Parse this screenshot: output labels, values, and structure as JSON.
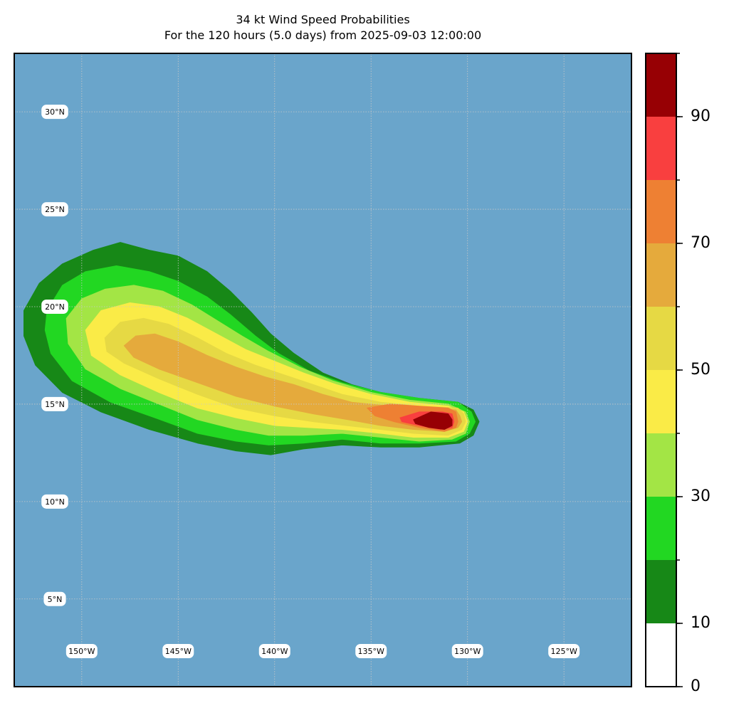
{
  "title": {
    "line1": "34 kt Wind Speed Probabilities",
    "line2": "For the 120 hours (5.0 days) from 2025-09-03 12:00:00"
  },
  "map": {
    "ocean_color": "#6aa5cb",
    "lon_range": [
      -153.5,
      -121.5
    ],
    "lat_range": [
      0.5,
      33
    ],
    "gridlines": {
      "lon": [
        -150,
        -145,
        -140,
        -135,
        -130,
        -125
      ],
      "lat": [
        5,
        10,
        15,
        20,
        25,
        30
      ]
    },
    "lat_labels": [
      "30°N",
      "25°N",
      "20°N",
      "15°N",
      "10°N",
      "5°N"
    ],
    "lon_labels": [
      "150°W",
      "145°W",
      "140°W",
      "135°W",
      "130°W",
      "125°W"
    ]
  },
  "chart_data": {
    "type": "heatmap",
    "title": "34 kt Wind Speed Probabilities\nFor the 120 hours (5.0 days) from 2025-09-03 12:00:00",
    "levels": [
      0,
      10,
      20,
      30,
      40,
      50,
      60,
      70,
      80,
      90,
      100
    ],
    "level_colors": [
      "#ffffff",
      "#178817",
      "#22d722",
      "#a3e545",
      "#faeb47",
      "#e6d944",
      "#e5aa3c",
      "#ee8033",
      "#f93f3f",
      "#970004",
      "#8428d9"
    ],
    "colorbar_ticks": [
      "0",
      "10",
      "30",
      "50",
      "70",
      "90"
    ],
    "colorbar_range": [
      0,
      100
    ],
    "contours": [
      {
        "level": 10,
        "polygon": [
          [
            -153,
            19.8
          ],
          [
            -152.2,
            21.2
          ],
          [
            -151,
            22.2
          ],
          [
            -149.4,
            22.9
          ],
          [
            -148,
            23.3
          ],
          [
            -146.5,
            22.9
          ],
          [
            -145,
            22.6
          ],
          [
            -143.5,
            21.8
          ],
          [
            -142.3,
            20.8
          ],
          [
            -141.2,
            19.7
          ],
          [
            -140.2,
            18.6
          ],
          [
            -139,
            17.6
          ],
          [
            -137.5,
            16.6
          ],
          [
            -136,
            16
          ],
          [
            -134.5,
            15.6
          ],
          [
            -132.5,
            15.3
          ],
          [
            -130.5,
            15.1
          ],
          [
            -129.7,
            14.7
          ],
          [
            -129.4,
            14.1
          ],
          [
            -129.7,
            13.4
          ],
          [
            -130.4,
            13
          ],
          [
            -132.5,
            12.8
          ],
          [
            -134.5,
            12.8
          ],
          [
            -136.5,
            12.9
          ],
          [
            -138.5,
            12.7
          ],
          [
            -140.2,
            12.4
          ],
          [
            -142,
            12.6
          ],
          [
            -144,
            13
          ],
          [
            -146.5,
            13.7
          ],
          [
            -149,
            14.6
          ],
          [
            -151,
            15.6
          ],
          [
            -152.4,
            17
          ],
          [
            -153,
            18.5
          ]
        ]
      },
      {
        "level": 20,
        "polygon": [
          [
            -151.8,
            19.8
          ],
          [
            -151,
            21.1
          ],
          [
            -149.8,
            21.8
          ],
          [
            -148.2,
            22.1
          ],
          [
            -146.5,
            21.8
          ],
          [
            -145,
            21.3
          ],
          [
            -143.5,
            20.5
          ],
          [
            -142.3,
            19.6
          ],
          [
            -141,
            18.5
          ],
          [
            -139.8,
            17.6
          ],
          [
            -138.2,
            16.7
          ],
          [
            -136.5,
            16.1
          ],
          [
            -134.5,
            15.6
          ],
          [
            -132.5,
            15.3
          ],
          [
            -130.5,
            15.1
          ],
          [
            -129.8,
            14.6
          ],
          [
            -129.6,
            14.1
          ],
          [
            -129.9,
            13.5
          ],
          [
            -130.6,
            13.1
          ],
          [
            -132.5,
            13
          ],
          [
            -134.5,
            13
          ],
          [
            -136.5,
            13.2
          ],
          [
            -138.5,
            13
          ],
          [
            -140.3,
            12.9
          ],
          [
            -142,
            13.1
          ],
          [
            -144,
            13.5
          ],
          [
            -146.2,
            14.3
          ],
          [
            -148.5,
            15.1
          ],
          [
            -150.5,
            16.2
          ],
          [
            -151.6,
            17.6
          ],
          [
            -151.9,
            18.8
          ]
        ]
      },
      {
        "level": 30,
        "polygon": [
          [
            -150.8,
            19.4
          ],
          [
            -150,
            20.4
          ],
          [
            -148.8,
            20.9
          ],
          [
            -147.3,
            21.1
          ],
          [
            -145.8,
            20.8
          ],
          [
            -144.3,
            20.1
          ],
          [
            -143,
            19.3
          ],
          [
            -141.7,
            18.5
          ],
          [
            -140.3,
            17.7
          ],
          [
            -138.7,
            16.9
          ],
          [
            -137,
            16.2
          ],
          [
            -135,
            15.6
          ],
          [
            -133,
            15.2
          ],
          [
            -131,
            15
          ],
          [
            -130.1,
            14.6
          ],
          [
            -129.9,
            14.1
          ],
          [
            -130.1,
            13.5
          ],
          [
            -130.8,
            13.2
          ],
          [
            -132.5,
            13.1
          ],
          [
            -134.5,
            13.3
          ],
          [
            -136.5,
            13.5
          ],
          [
            -138.5,
            13.4
          ],
          [
            -140.3,
            13.4
          ],
          [
            -142,
            13.7
          ],
          [
            -144,
            14.2
          ],
          [
            -146,
            15
          ],
          [
            -148,
            15.8
          ],
          [
            -149.8,
            16.8
          ],
          [
            -150.7,
            18.1
          ]
        ]
      },
      {
        "level": 40,
        "polygon": [
          [
            -149.8,
            18.8
          ],
          [
            -149,
            19.8
          ],
          [
            -147.5,
            20.2
          ],
          [
            -146,
            20
          ],
          [
            -144.5,
            19.4
          ],
          [
            -143,
            18.6
          ],
          [
            -141.5,
            17.8
          ],
          [
            -140,
            17.2
          ],
          [
            -138.5,
            16.6
          ],
          [
            -136.8,
            16
          ],
          [
            -135,
            15.5
          ],
          [
            -133,
            15.1
          ],
          [
            -131,
            14.9
          ],
          [
            -130.2,
            14.6
          ],
          [
            -130,
            14.1
          ],
          [
            -130.2,
            13.6
          ],
          [
            -131,
            13.3
          ],
          [
            -132.8,
            13.3
          ],
          [
            -134.5,
            13.5
          ],
          [
            -136.5,
            13.7
          ],
          [
            -138.3,
            13.8
          ],
          [
            -140,
            13.9
          ],
          [
            -142,
            14.3
          ],
          [
            -144,
            14.8
          ],
          [
            -146,
            15.6
          ],
          [
            -148,
            16.5
          ],
          [
            -149.5,
            17.5
          ]
        ]
      },
      {
        "level": 50,
        "polygon": [
          [
            -148.8,
            18.4
          ],
          [
            -148,
            19.2
          ],
          [
            -146.8,
            19.4
          ],
          [
            -145.5,
            19.1
          ],
          [
            -144,
            18.4
          ],
          [
            -142.5,
            17.6
          ],
          [
            -141,
            17
          ],
          [
            -139.5,
            16.5
          ],
          [
            -138,
            16
          ],
          [
            -136.5,
            15.5
          ],
          [
            -134.5,
            15.1
          ],
          [
            -132.5,
            14.9
          ],
          [
            -130.5,
            14.8
          ],
          [
            -130.2,
            14.5
          ],
          [
            -130.1,
            14.1
          ],
          [
            -130.3,
            13.7
          ],
          [
            -131,
            13.4
          ],
          [
            -132.8,
            13.5
          ],
          [
            -134.5,
            13.7
          ],
          [
            -136.3,
            13.9
          ],
          [
            -138,
            14.1
          ],
          [
            -140,
            14.4
          ],
          [
            -142,
            14.8
          ],
          [
            -144,
            15.5
          ],
          [
            -146,
            16.3
          ],
          [
            -147.8,
            17.1
          ],
          [
            -148.7,
            17.7
          ]
        ]
      },
      {
        "level": 60,
        "polygon": [
          [
            -147.8,
            18
          ],
          [
            -147.2,
            18.5
          ],
          [
            -146.2,
            18.6
          ],
          [
            -145,
            18.2
          ],
          [
            -143.5,
            17.5
          ],
          [
            -142,
            16.9
          ],
          [
            -140.5,
            16.4
          ],
          [
            -139,
            16
          ],
          [
            -137.5,
            15.5
          ],
          [
            -136,
            15.1
          ],
          [
            -134,
            14.9
          ],
          [
            -132,
            14.8
          ],
          [
            -130.6,
            14.7
          ],
          [
            -130.4,
            14.4
          ],
          [
            -130.3,
            14.1
          ],
          [
            -130.5,
            13.8
          ],
          [
            -131.2,
            13.6
          ],
          [
            -132.8,
            13.7
          ],
          [
            -134.5,
            13.9
          ],
          [
            -136.2,
            14.2
          ],
          [
            -138,
            14.5
          ],
          [
            -140,
            14.9
          ],
          [
            -142,
            15.4
          ],
          [
            -144,
            16.1
          ],
          [
            -146,
            16.8
          ],
          [
            -147.3,
            17.4
          ]
        ]
      },
      {
        "level": 70,
        "polygon": [
          [
            -135.2,
            14.8
          ],
          [
            -134,
            15
          ],
          [
            -132.5,
            14.9
          ],
          [
            -131,
            14.8
          ],
          [
            -130.6,
            14.6
          ],
          [
            -130.5,
            14.1
          ],
          [
            -130.6,
            13.8
          ],
          [
            -131.2,
            13.6
          ],
          [
            -132.5,
            13.8
          ],
          [
            -133.8,
            14.1
          ],
          [
            -134.8,
            14.4
          ]
        ]
      },
      {
        "level": 80,
        "polygon": [
          [
            -133.5,
            14.3
          ],
          [
            -132.5,
            14.6
          ],
          [
            -131.3,
            14.6
          ],
          [
            -130.8,
            14.5
          ],
          [
            -130.7,
            14.1
          ],
          [
            -130.8,
            13.8
          ],
          [
            -131.4,
            13.7
          ],
          [
            -132.5,
            13.9
          ],
          [
            -133.4,
            14.1
          ]
        ]
      },
      {
        "level": 90,
        "polygon": [
          [
            -132.8,
            14.2
          ],
          [
            -131.9,
            14.6
          ],
          [
            -131,
            14.5
          ],
          [
            -130.8,
            14.2
          ],
          [
            -130.8,
            13.9
          ],
          [
            -131.2,
            13.7
          ],
          [
            -132,
            13.8
          ],
          [
            -132.7,
            14
          ]
        ]
      }
    ]
  }
}
